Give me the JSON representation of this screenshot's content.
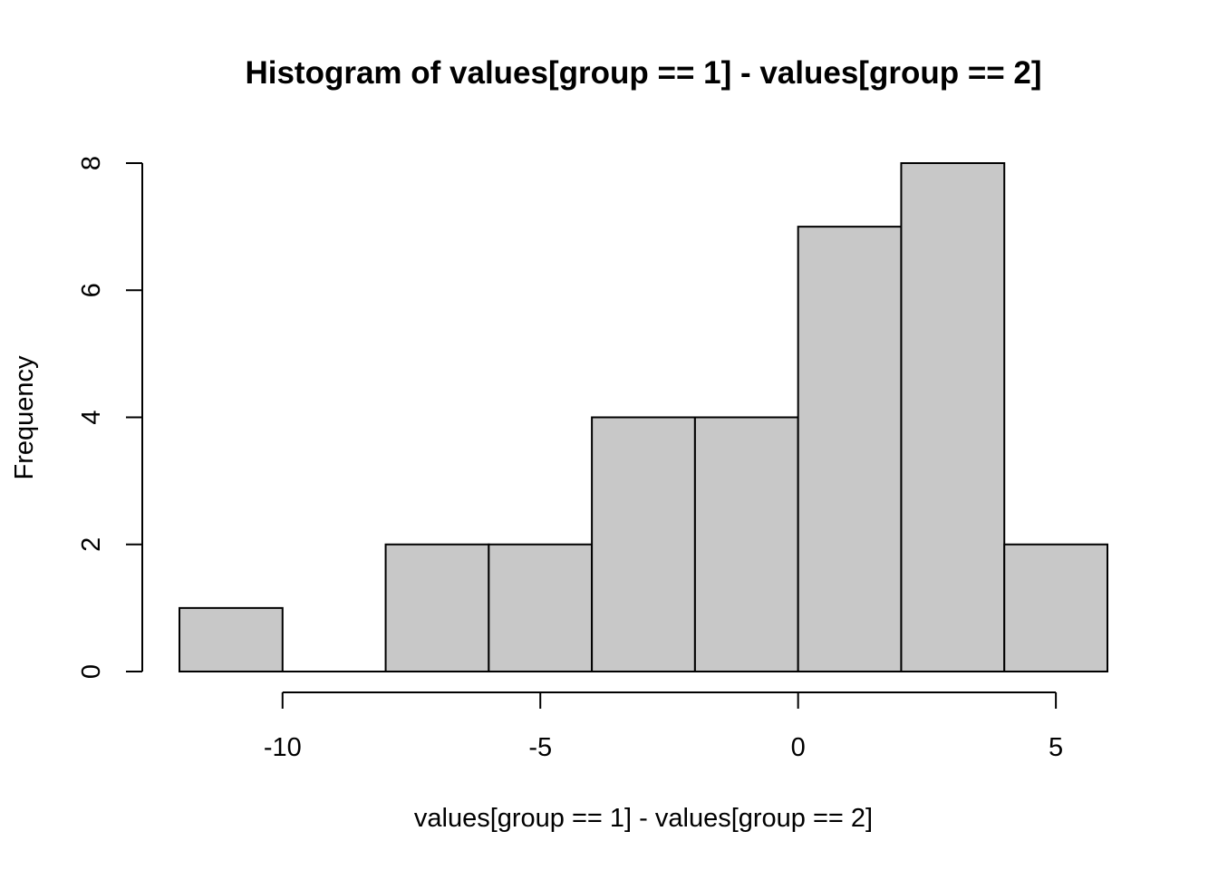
{
  "chart_data": {
    "type": "bar",
    "title": "Histogram of values[group == 1] - values[group == 2]",
    "xlabel": "values[group == 1] - values[group == 2]",
    "ylabel": "Frequency",
    "bins": [
      {
        "start": -12,
        "end": -10,
        "count": 1
      },
      {
        "start": -10,
        "end": -8,
        "count": 0
      },
      {
        "start": -8,
        "end": -6,
        "count": 2
      },
      {
        "start": -6,
        "end": -4,
        "count": 2
      },
      {
        "start": -4,
        "end": -2,
        "count": 4
      },
      {
        "start": -2,
        "end": 0,
        "count": 4
      },
      {
        "start": 0,
        "end": 2,
        "count": 7
      },
      {
        "start": 2,
        "end": 4,
        "count": 8
      },
      {
        "start": 4,
        "end": 6,
        "count": 2
      }
    ],
    "xlim": [
      -12,
      6
    ],
    "ylim": [
      0,
      8
    ],
    "x_ticks": [
      {
        "value": -10,
        "label": "-10"
      },
      {
        "value": -5,
        "label": "-5"
      },
      {
        "value": 0,
        "label": "0"
      },
      {
        "value": 5,
        "label": "5"
      }
    ],
    "y_ticks": [
      {
        "value": 0,
        "label": "0"
      },
      {
        "value": 2,
        "label": "2"
      },
      {
        "value": 4,
        "label": "4"
      },
      {
        "value": 6,
        "label": "6"
      },
      {
        "value": 8,
        "label": "8"
      }
    ],
    "grid": false,
    "legend": "none",
    "bar_color": "#c8c8c8",
    "edge_color": "#000000",
    "background_color": "#ffffff"
  }
}
